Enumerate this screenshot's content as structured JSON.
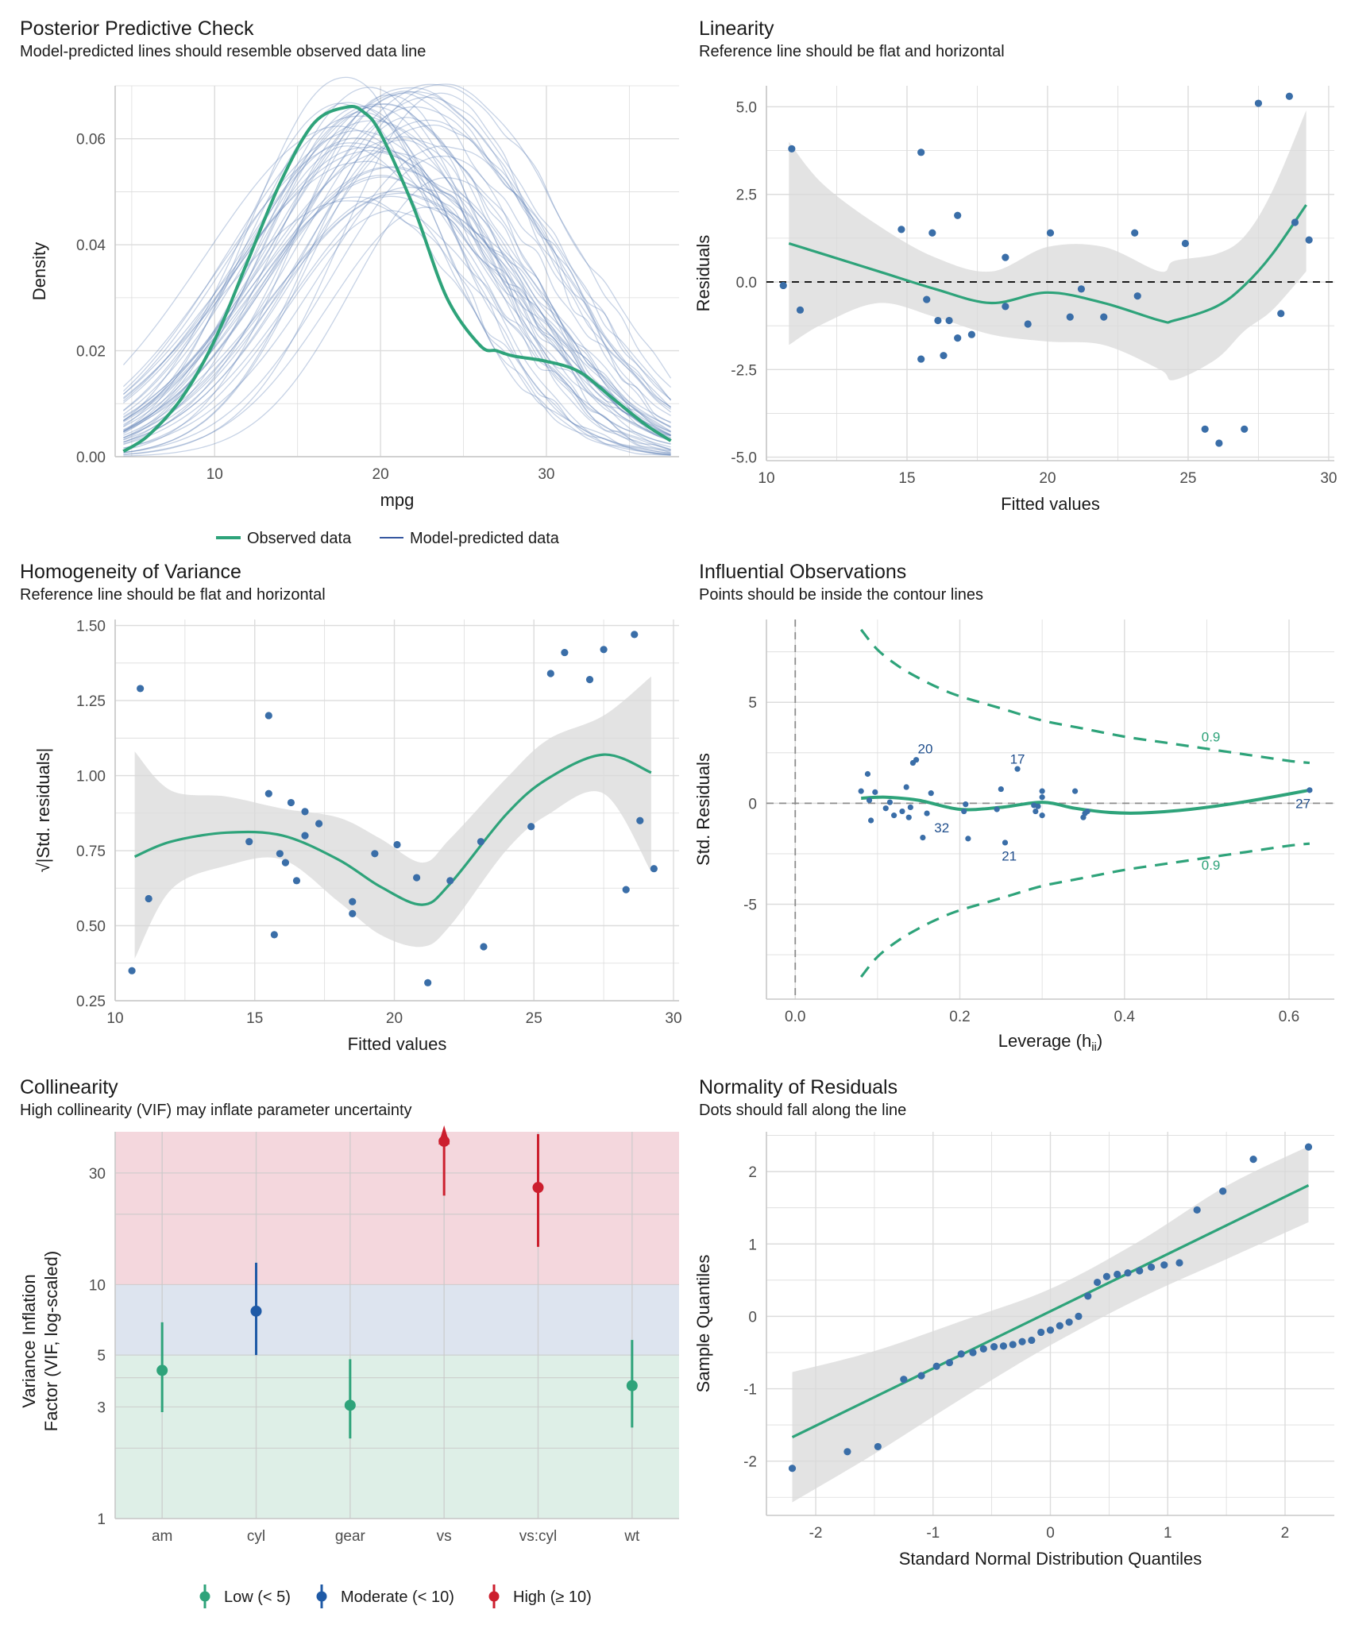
{
  "colors": {
    "green": "#2ea37a",
    "blue_point": "#3a6ea8",
    "blue_line": "#5b7fb5",
    "band": "#d9d9d9",
    "grid": "#dcdcdc",
    "label_blue": "#1f4e8c",
    "red": "#cc1f2e",
    "moderate": "#1f5aa6",
    "zone_high": "#f4d7dd",
    "zone_moderate": "#dde4ef",
    "zone_low": "#deefe7"
  },
  "chart_data": [
    {
      "id": "ppc",
      "type": "line",
      "title": "Posterior Predictive Check",
      "subtitle": "Model-predicted lines should resemble observed data line",
      "xlabel": "mpg",
      "ylabel": "Density",
      "xlim": [
        4,
        38
      ],
      "ylim": [
        0,
        0.07
      ],
      "xticks": [
        10,
        20,
        30
      ],
      "yticks": [
        0.0,
        0.02,
        0.04,
        0.06
      ],
      "ytick_labels": [
        "0.00",
        "0.02",
        "0.04",
        "0.06"
      ],
      "legend_position": "bottom",
      "series": [
        {
          "name": "Observed data",
          "role": "observed",
          "x": [
            4.5,
            6,
            8,
            10,
            12,
            14,
            16,
            18,
            19,
            20,
            22,
            24,
            26,
            27,
            28,
            30,
            32,
            34,
            36,
            37.5
          ],
          "values": [
            0.001,
            0.004,
            0.011,
            0.022,
            0.037,
            0.052,
            0.063,
            0.066,
            0.065,
            0.061,
            0.047,
            0.03,
            0.021,
            0.02,
            0.019,
            0.018,
            0.016,
            0.011,
            0.006,
            0.003
          ]
        },
        {
          "name": "Model-predicted data",
          "role": "predicted"
        }
      ]
    },
    {
      "id": "linearity",
      "type": "scatter",
      "title": "Linearity",
      "subtitle": "Reference line should be flat and horizontal",
      "xlabel": "Fitted values",
      "ylabel": "Residuals",
      "xlim": [
        10,
        30.2
      ],
      "ylim": [
        -5.1,
        5.6
      ],
      "xticks": [
        10,
        15,
        20,
        25,
        30
      ],
      "yticks": [
        -5,
        -2.5,
        0,
        2.5,
        5
      ],
      "ytick_labels": [
        "-5.0",
        "-2.5",
        "0.0",
        "2.5",
        "5.0"
      ],
      "points": [
        [
          10.6,
          -0.1
        ],
        [
          10.9,
          3.8
        ],
        [
          11.2,
          -0.8
        ],
        [
          14.8,
          1.5
        ],
        [
          15.5,
          3.7
        ],
        [
          15.5,
          -2.2
        ],
        [
          15.7,
          -0.5
        ],
        [
          15.9,
          1.4
        ],
        [
          16.1,
          -1.1
        ],
        [
          16.3,
          -2.1
        ],
        [
          16.5,
          -1.1
        ],
        [
          16.8,
          -1.6
        ],
        [
          16.8,
          1.9
        ],
        [
          17.3,
          -1.5
        ],
        [
          18.5,
          0.7
        ],
        [
          18.5,
          -0.7
        ],
        [
          19.3,
          -1.2
        ],
        [
          20.1,
          1.4
        ],
        [
          20.8,
          -1.0
        ],
        [
          21.2,
          -0.2
        ],
        [
          22.0,
          -1.0
        ],
        [
          23.1,
          1.4
        ],
        [
          23.2,
          -0.4
        ],
        [
          24.9,
          1.1
        ],
        [
          25.6,
          -4.2
        ],
        [
          26.1,
          -4.6
        ],
        [
          27.0,
          -4.2
        ],
        [
          27.5,
          5.1
        ],
        [
          28.3,
          -0.9
        ],
        [
          28.6,
          5.3
        ],
        [
          28.8,
          1.7
        ],
        [
          29.3,
          1.2
        ]
      ],
      "smooth": {
        "x": [
          10.8,
          12,
          14,
          16,
          18,
          20,
          22,
          24,
          24.5,
          26,
          27,
          28,
          29.2
        ],
        "y": [
          1.1,
          0.8,
          0.3,
          -0.2,
          -0.6,
          -0.3,
          -0.6,
          -1.1,
          -1.1,
          -0.7,
          -0.1,
          0.8,
          2.2
        ],
        "lo": [
          -1.8,
          -1.2,
          -0.6,
          -1.0,
          -1.5,
          -1.7,
          -1.8,
          -2.5,
          -2.8,
          -2.2,
          -1.4,
          -0.8,
          0.3
        ],
        "hi": [
          4.0,
          2.8,
          1.6,
          0.7,
          0.3,
          1.0,
          1.0,
          0.3,
          0.6,
          0.8,
          1.3,
          2.6,
          4.9
        ]
      },
      "hline": 0
    },
    {
      "id": "homogeneity",
      "type": "scatter",
      "title": "Homogeneity of Variance",
      "subtitle": "Reference line should be flat and horizontal",
      "xlabel": "Fitted values",
      "ylabel": "√|Std. residuals|",
      "xlim": [
        10,
        30.2
      ],
      "ylim": [
        0.25,
        1.52
      ],
      "xticks": [
        10,
        15,
        20,
        25,
        30
      ],
      "yticks": [
        0.25,
        0.5,
        0.75,
        1.0,
        1.25,
        1.5
      ],
      "ytick_labels": [
        "0.25",
        "0.50",
        "0.75",
        "1.00",
        "1.25",
        "1.50"
      ],
      "points": [
        [
          10.6,
          0.35
        ],
        [
          10.9,
          1.29
        ],
        [
          11.2,
          0.59
        ],
        [
          14.8,
          0.78
        ],
        [
          15.5,
          1.2
        ],
        [
          15.5,
          0.94
        ],
        [
          15.7,
          0.47
        ],
        [
          15.9,
          0.74
        ],
        [
          16.1,
          0.71
        ],
        [
          16.3,
          0.91
        ],
        [
          16.5,
          0.65
        ],
        [
          16.8,
          0.88
        ],
        [
          16.8,
          0.8
        ],
        [
          17.3,
          0.84
        ],
        [
          18.5,
          0.58
        ],
        [
          18.5,
          0.54
        ],
        [
          19.3,
          0.74
        ],
        [
          20.1,
          0.77
        ],
        [
          20.8,
          0.66
        ],
        [
          21.2,
          0.31
        ],
        [
          22.0,
          0.65
        ],
        [
          23.1,
          0.78
        ],
        [
          23.2,
          0.43
        ],
        [
          24.9,
          0.83
        ],
        [
          25.6,
          1.34
        ],
        [
          26.1,
          1.41
        ],
        [
          27.0,
          1.32
        ],
        [
          27.5,
          1.42
        ],
        [
          28.3,
          0.62
        ],
        [
          28.6,
          1.47
        ],
        [
          28.8,
          0.85
        ],
        [
          29.3,
          0.69
        ]
      ],
      "smooth": {
        "x": [
          10.7,
          12,
          14,
          16,
          18,
          19.5,
          21,
          22,
          24,
          25.5,
          27.5,
          29.2
        ],
        "y": [
          0.73,
          0.78,
          0.81,
          0.8,
          0.72,
          0.63,
          0.57,
          0.64,
          0.87,
          0.99,
          1.07,
          1.01
        ],
        "lo": [
          0.39,
          0.62,
          0.7,
          0.72,
          0.58,
          0.47,
          0.43,
          0.5,
          0.75,
          0.87,
          0.94,
          0.68
        ],
        "hi": [
          1.08,
          0.95,
          0.93,
          0.89,
          0.86,
          0.79,
          0.71,
          0.79,
          0.99,
          1.12,
          1.2,
          1.33
        ]
      }
    },
    {
      "id": "influential",
      "type": "scatter",
      "title": "Influential Observations",
      "subtitle": "Points should be inside the contour lines",
      "xlabel": "Leverage (h",
      "xlabel_sub": "ii",
      "xlabel_end": ")",
      "ylabel": "Std. Residuals",
      "xlim": [
        -0.035,
        0.655
      ],
      "ylim": [
        -9.7,
        9.1
      ],
      "xticks": [
        0.0,
        0.2,
        0.4,
        0.6
      ],
      "xtick_labels": [
        "0.0",
        "0.2",
        "0.4",
        "0.6"
      ],
      "yticks": [
        -5,
        0,
        5
      ],
      "points": [
        [
          0.08,
          0.6
        ],
        [
          0.088,
          1.45
        ],
        [
          0.09,
          0.15
        ],
        [
          0.092,
          -0.85
        ],
        [
          0.097,
          0.55
        ],
        [
          0.11,
          -0.25
        ],
        [
          0.115,
          0.05
        ],
        [
          0.12,
          -0.6
        ],
        [
          0.13,
          -0.4
        ],
        [
          0.135,
          0.8
        ],
        [
          0.138,
          -0.7
        ],
        [
          0.14,
          -0.2
        ],
        [
          0.143,
          2.0
        ],
        [
          0.147,
          2.15
        ],
        [
          0.155,
          -1.7
        ],
        [
          0.16,
          -0.5
        ],
        [
          0.165,
          0.5
        ],
        [
          0.205,
          -0.4
        ],
        [
          0.207,
          -0.05
        ],
        [
          0.21,
          -1.75
        ],
        [
          0.245,
          -0.3
        ],
        [
          0.25,
          0.7
        ],
        [
          0.255,
          -1.95
        ],
        [
          0.27,
          1.7
        ],
        [
          0.29,
          -0.1
        ],
        [
          0.292,
          -0.4
        ],
        [
          0.295,
          -0.15
        ],
        [
          0.3,
          0.3
        ],
        [
          0.3,
          0.6
        ],
        [
          0.3,
          -0.6
        ],
        [
          0.34,
          0.6
        ],
        [
          0.35,
          -0.7
        ],
        [
          0.352,
          -0.5
        ],
        [
          0.355,
          -0.4
        ],
        [
          0.625,
          0.65
        ]
      ],
      "point_labels": [
        {
          "text": "20",
          "x": 0.158,
          "y": 2.7
        },
        {
          "text": "17",
          "x": 0.27,
          "y": 2.2
        },
        {
          "text": "32",
          "x": 0.178,
          "y": -1.2
        },
        {
          "text": "21",
          "x": 0.26,
          "y": -2.6
        },
        {
          "text": "27",
          "x": 0.617,
          "y": 0.0
        }
      ],
      "fit": {
        "x": [
          0.08,
          0.11,
          0.15,
          0.2,
          0.25,
          0.3,
          0.34,
          0.38,
          0.42,
          0.48,
          0.55,
          0.625
        ],
        "y": [
          0.25,
          0.3,
          0.15,
          -0.3,
          -0.2,
          0.05,
          -0.25,
          -0.45,
          -0.48,
          -0.3,
          0.1,
          0.65
        ]
      },
      "contours": [
        {
          "label": "0.9",
          "x": [
            0.08,
            0.1,
            0.125,
            0.15,
            0.175,
            0.2,
            0.25,
            0.3,
            0.35,
            0.4,
            0.45,
            0.5,
            0.55,
            0.6,
            0.625
          ],
          "y": [
            8.6,
            7.6,
            6.8,
            6.2,
            5.7,
            5.3,
            4.7,
            4.1,
            3.7,
            3.3,
            3.0,
            2.7,
            2.4,
            2.1,
            2.0
          ]
        },
        {
          "label": "0.9",
          "x": [
            0.08,
            0.1,
            0.125,
            0.15,
            0.175,
            0.2,
            0.25,
            0.3,
            0.35,
            0.4,
            0.45,
            0.5,
            0.55,
            0.6,
            0.625
          ],
          "y": [
            -8.6,
            -7.6,
            -6.8,
            -6.2,
            -5.7,
            -5.3,
            -4.7,
            -4.1,
            -3.7,
            -3.3,
            -3.0,
            -2.7,
            -2.4,
            -2.1,
            -2.0
          ]
        }
      ],
      "contour_label_pos": [
        {
          "x": 0.505,
          "y": 3.3
        },
        {
          "x": 0.505,
          "y": -3.05
        }
      ],
      "hline": 0,
      "vline": 0
    },
    {
      "id": "collinearity",
      "type": "scatter",
      "title": "Collinearity",
      "subtitle": "High collinearity (VIF) may inflate parameter uncertainty",
      "ylabel_lines": [
        "Variance Inflation",
        "Factor (VIF, log-scaled)"
      ],
      "log_y": true,
      "ylim": [
        1,
        45
      ],
      "yticks": [
        1,
        3,
        5,
        10,
        30
      ],
      "minor_yticks": [
        2,
        4,
        20
      ],
      "categories": [
        "am",
        "cyl",
        "gear",
        "vs",
        "vs:cyl",
        "wt"
      ],
      "vif": [
        {
          "term": "am",
          "value": 4.3,
          "lo": 2.85,
          "hi": 6.9,
          "level": "low"
        },
        {
          "term": "cyl",
          "value": 7.7,
          "lo": 5.0,
          "hi": 12.4,
          "level": "moderate"
        },
        {
          "term": "gear",
          "value": 3.05,
          "lo": 2.2,
          "hi": 4.8,
          "level": "low"
        },
        {
          "term": "vs",
          "value": 41,
          "lo": 24,
          "hi": 45,
          "level": "high"
        },
        {
          "term": "vs:cyl",
          "value": 26,
          "lo": 14.5,
          "hi": 44,
          "level": "high"
        },
        {
          "term": "wt",
          "value": 3.7,
          "lo": 2.45,
          "hi": 5.8,
          "level": "low"
        }
      ],
      "zones": [
        {
          "level": "low",
          "from": 1,
          "to": 5
        },
        {
          "level": "moderate",
          "from": 5,
          "to": 10
        },
        {
          "level": "high",
          "from": 10,
          "to": 45
        }
      ],
      "legend_position": "bottom",
      "legend": [
        {
          "level": "low",
          "label": "Low (< 5)"
        },
        {
          "level": "moderate",
          "label": "Moderate (< 10)"
        },
        {
          "level": "high",
          "label": "High (≥ 10)"
        }
      ]
    },
    {
      "id": "normality",
      "type": "scatter",
      "title": "Normality of Residuals",
      "subtitle": "Dots should fall along the line",
      "xlabel": "Standard Normal Distribution Quantiles",
      "ylabel": "Sample Quantiles",
      "xlim": [
        -2.42,
        2.42
      ],
      "ylim": [
        -2.75,
        2.55
      ],
      "xticks": [
        -2,
        -1,
        0,
        1,
        2
      ],
      "yticks": [
        -2,
        -1,
        0,
        1,
        2
      ],
      "points": [
        [
          -2.2,
          -2.1
        ],
        [
          -1.73,
          -1.87
        ],
        [
          -1.47,
          -1.8
        ],
        [
          -1.25,
          -0.87
        ],
        [
          -1.1,
          -0.82
        ],
        [
          -0.97,
          -0.69
        ],
        [
          -0.86,
          -0.64
        ],
        [
          -0.76,
          -0.52
        ],
        [
          -0.66,
          -0.5
        ],
        [
          -0.57,
          -0.45
        ],
        [
          -0.48,
          -0.42
        ],
        [
          -0.4,
          -0.41
        ],
        [
          -0.32,
          -0.39
        ],
        [
          -0.24,
          -0.35
        ],
        [
          -0.16,
          -0.33
        ],
        [
          -0.08,
          -0.22
        ],
        [
          0.0,
          -0.19
        ],
        [
          0.08,
          -0.13
        ],
        [
          0.16,
          -0.08
        ],
        [
          0.24,
          0.0
        ],
        [
          0.32,
          0.28
        ],
        [
          0.4,
          0.47
        ],
        [
          0.48,
          0.55
        ],
        [
          0.57,
          0.58
        ],
        [
          0.66,
          0.6
        ],
        [
          0.76,
          0.63
        ],
        [
          0.86,
          0.68
        ],
        [
          0.97,
          0.71
        ],
        [
          1.1,
          0.74
        ],
        [
          1.25,
          1.47
        ],
        [
          1.47,
          1.73
        ],
        [
          1.73,
          2.17
        ],
        [
          2.2,
          2.34
        ]
      ],
      "line": {
        "x": [
          -2.2,
          2.2
        ],
        "y": [
          -1.67,
          1.81
        ]
      },
      "band": {
        "x": [
          -2.2,
          -1.5,
          -0.75,
          0.0,
          0.75,
          1.5,
          2.2
        ],
        "lo": [
          -2.57,
          -1.9,
          -1.13,
          -0.4,
          0.24,
          0.79,
          1.3
        ],
        "hi": [
          -0.77,
          -0.48,
          -0.06,
          0.38,
          1.03,
          1.8,
          2.35
        ]
      }
    }
  ]
}
